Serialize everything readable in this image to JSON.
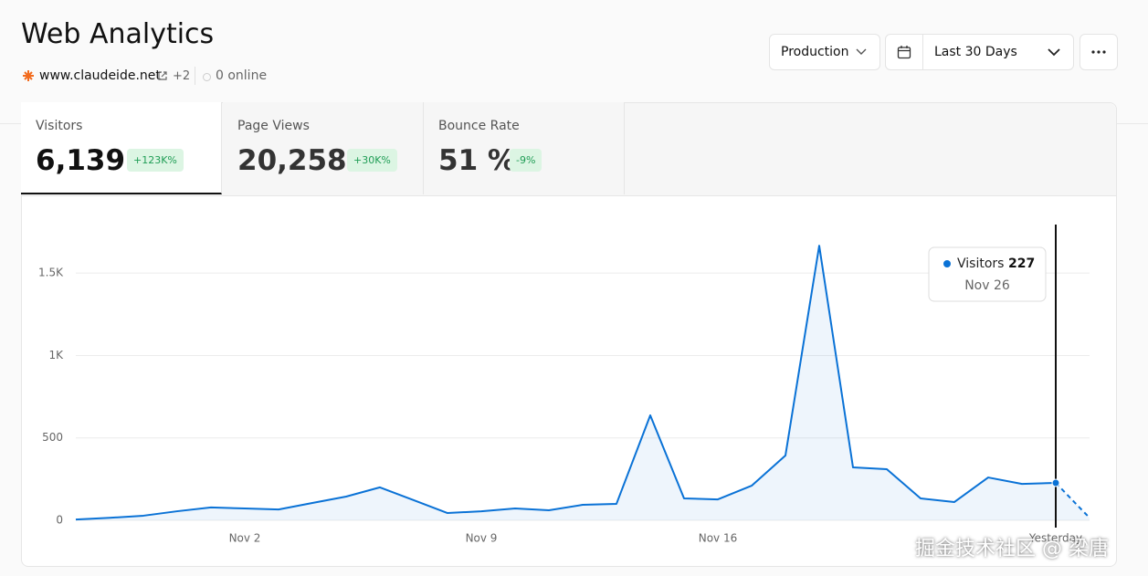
{
  "header": {
    "title": "Web Analytics",
    "site": "www.claudeide.net",
    "more_sites": "+2",
    "online": "0 online"
  },
  "controls": {
    "environment": "Production",
    "range": "Last 30 Days"
  },
  "tabs": [
    {
      "label": "Visitors",
      "value": "6,139",
      "change": "+123K%"
    },
    {
      "label": "Page Views",
      "value": "20,258",
      "change": "+30K%"
    },
    {
      "label": "Bounce Rate",
      "value": "51 %",
      "change": "-9%"
    }
  ],
  "chart_data": {
    "type": "line",
    "categories": [
      null,
      null,
      null,
      null,
      null,
      "Nov 2",
      null,
      null,
      null,
      null,
      null,
      null,
      "Nov 9",
      null,
      null,
      null,
      null,
      null,
      null,
      "Nov 16",
      null,
      null,
      null,
      null,
      null,
      null,
      null,
      null,
      null,
      "Yesterday",
      null
    ],
    "series": [
      {
        "name": "Visitors",
        "color": "#0a72d6",
        "values": [
          5,
          15,
          28,
          55,
          78,
          72,
          66,
          105,
          144,
          200,
          122,
          44,
          55,
          72,
          61,
          94,
          100,
          637,
          133,
          127,
          210,
          393,
          1666,
          321,
          310,
          133,
          111,
          260,
          221,
          227,
          15
        ]
      }
    ],
    "ylim": [
      0,
      1800
    ],
    "yticks": [
      0,
      500,
      {
        "value": 1000,
        "label": "1K"
      },
      {
        "value": 1500,
        "label": "1.5K"
      }
    ],
    "grid": true,
    "hover_index": 29,
    "tooltip": {
      "date": "Nov 26"
    }
  },
  "watermark": "掘金技术社区 @ 梁唐"
}
